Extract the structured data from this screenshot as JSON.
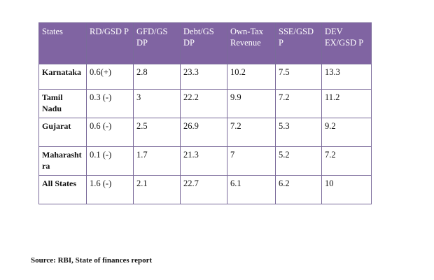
{
  "table": {
    "headers": [
      "States",
      "RD/GSD P",
      "GFD/GS DP",
      "Debt/GS DP",
      "Own-Tax Revenue",
      "SSE/GSD P",
      "DEV EX/GSD P"
    ],
    "rows": [
      [
        "Karnataka",
        "0.6(+)",
        "2.8",
        "23.3",
        "10.2",
        "7.5",
        "13.3"
      ],
      [
        "Tamil Nadu",
        "0.3 (-)",
        "3",
        "22.2",
        "9.9",
        "7.2",
        "11.2"
      ],
      [
        "Gujarat",
        "0.6 (-)",
        "2.5",
        "26.9",
        "7.2",
        "5.3",
        "9.2"
      ],
      [
        "Maharasht ra",
        "0.1 (-)",
        "1.7",
        "21.3",
        "7",
        "5.2",
        "7.2"
      ],
      [
        "All States",
        "1.6 (-)",
        "2.1",
        "22.7",
        "6.1",
        "6.2",
        "10"
      ]
    ]
  },
  "source": "Source: RBI, State of finances report",
  "colors": {
    "header_bg": "#8064a2",
    "header_text": "#ffffff",
    "border": "#7a6a9a"
  }
}
